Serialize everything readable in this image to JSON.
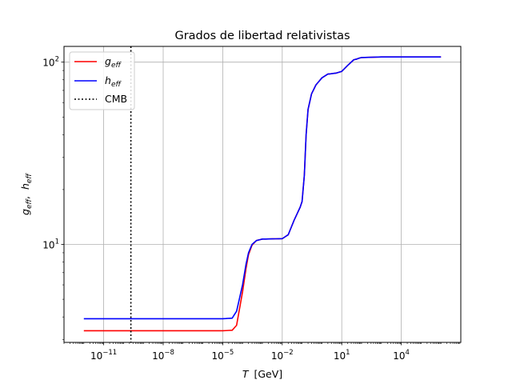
{
  "chart_data": {
    "type": "line",
    "title": "Grados de libertad relativistas",
    "xlabel": {
      "var": "T",
      "unit": "[GeV]"
    },
    "ylabel": {
      "g": "g",
      "g_sub": "eff",
      "sep": ",  ",
      "h": "h",
      "h_sub": "eff"
    },
    "xscale": "log",
    "yscale": "log",
    "xlim": [
      1e-13,
      10000000.0
    ],
    "ylim": [
      2.9,
      122
    ],
    "grid": true,
    "legend_position": "top-left",
    "x_ticks": [
      {
        "value": 1e-11,
        "base": "10",
        "exp": "−11"
      },
      {
        "value": 1e-08,
        "base": "10",
        "exp": "−8"
      },
      {
        "value": 1e-05,
        "base": "10",
        "exp": "−5"
      },
      {
        "value": 0.01,
        "base": "10",
        "exp": "−2"
      },
      {
        "value": 10,
        "base": "10",
        "exp": "1"
      },
      {
        "value": 10000.0,
        "base": "10",
        "exp": "4"
      }
    ],
    "y_ticks": [
      {
        "value": 10,
        "base": "10",
        "exp": "1"
      },
      {
        "value": 100,
        "base": "10",
        "exp": "2"
      }
    ],
    "series": [
      {
        "name": {
          "base": "g",
          "sub": "eff"
        },
        "color": "#ff0000",
        "points": [
          [
            1e-12,
            3.36
          ],
          [
            1e-05,
            3.36
          ],
          [
            3e-05,
            3.38
          ],
          [
            5e-05,
            3.6
          ],
          [
            0.0001,
            5.5
          ],
          [
            0.00015,
            7.4
          ],
          [
            0.0002,
            8.8
          ],
          [
            0.0003,
            9.9
          ],
          [
            0.0005,
            10.5
          ],
          [
            0.001,
            10.7
          ],
          [
            0.01,
            10.75
          ],
          [
            0.02,
            11.3
          ],
          [
            0.04,
            13.6
          ],
          [
            0.08,
            16.0
          ],
          [
            0.1,
            17.2
          ],
          [
            0.13,
            24
          ],
          [
            0.16,
            40
          ],
          [
            0.2,
            55
          ],
          [
            0.3,
            67
          ],
          [
            0.5,
            75
          ],
          [
            1,
            82
          ],
          [
            2,
            86
          ],
          [
            5,
            87
          ],
          [
            10,
            89
          ],
          [
            20,
            96
          ],
          [
            40,
            103
          ],
          [
            100,
            106
          ],
          [
            1000.0,
            106.75
          ],
          [
            1000000.0,
            106.75
          ]
        ]
      },
      {
        "name": {
          "base": "h",
          "sub": "eff"
        },
        "color": "#0000ff",
        "points": [
          [
            1e-12,
            3.91
          ],
          [
            1e-05,
            3.91
          ],
          [
            3e-05,
            3.94
          ],
          [
            5e-05,
            4.3
          ],
          [
            0.0001,
            6.0
          ],
          [
            0.00015,
            7.8
          ],
          [
            0.0002,
            9.0
          ],
          [
            0.0003,
            10.0
          ],
          [
            0.0005,
            10.5
          ],
          [
            0.001,
            10.7
          ],
          [
            0.01,
            10.75
          ],
          [
            0.02,
            11.3
          ],
          [
            0.04,
            13.6
          ],
          [
            0.08,
            16.0
          ],
          [
            0.1,
            17.2
          ],
          [
            0.13,
            24
          ],
          [
            0.16,
            40
          ],
          [
            0.2,
            55
          ],
          [
            0.3,
            67
          ],
          [
            0.5,
            75
          ],
          [
            1,
            82
          ],
          [
            2,
            86
          ],
          [
            5,
            87
          ],
          [
            10,
            89
          ],
          [
            20,
            96
          ],
          [
            40,
            103
          ],
          [
            100,
            106
          ],
          [
            1000.0,
            106.75
          ],
          [
            1000000.0,
            106.75
          ]
        ]
      }
    ],
    "vline": {
      "label": "CMB",
      "x": 2.35e-10,
      "color": "#000000",
      "style": "dotted"
    }
  }
}
